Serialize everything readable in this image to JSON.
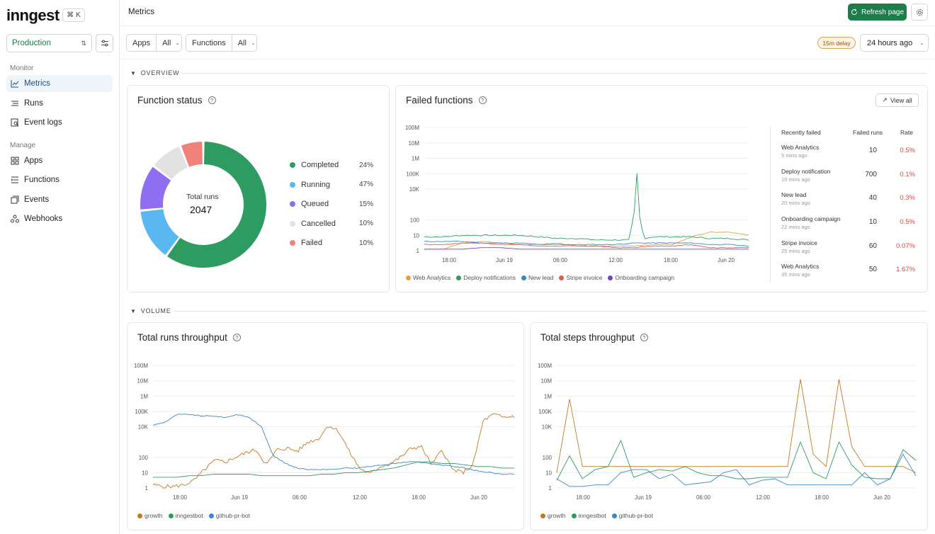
{
  "brand": {
    "logo": "inngest",
    "shortcut_symbol": "⌘",
    "shortcut_key": "K"
  },
  "environment": {
    "value": "Production"
  },
  "sidebar": {
    "monitor_label": "Monitor",
    "manage_label": "Manage",
    "items": [
      {
        "label": "Metrics",
        "icon": "chart-line-icon",
        "active": true
      },
      {
        "label": "Runs",
        "icon": "list-icon"
      },
      {
        "label": "Event logs",
        "icon": "search-doc-icon"
      },
      {
        "label": "Apps",
        "icon": "grid-icon"
      },
      {
        "label": "Functions",
        "icon": "function-list-icon"
      },
      {
        "label": "Events",
        "icon": "events-icon"
      },
      {
        "label": "Webhooks",
        "icon": "webhook-icon"
      }
    ]
  },
  "header": {
    "title": "Metrics",
    "refresh_label": "Refresh page"
  },
  "filters": {
    "apps_label": "Apps",
    "apps_value": "All",
    "functions_label": "Functions",
    "functions_value": "All",
    "delay_badge": "15m delay",
    "time_range": "24 hours ago"
  },
  "sections": {
    "overview": "OVERVIEW",
    "volume": "VOLUME"
  },
  "function_status": {
    "title": "Function status",
    "center_label": "Total runs",
    "center_value": "2047",
    "chart_data": {
      "type": "pie",
      "title": "Function status",
      "slices": [
        {
          "name": "Completed",
          "value": 24,
          "label": "24%",
          "color": "#2e9b61"
        },
        {
          "name": "Running",
          "value": 47,
          "label": "47%",
          "color": "#5ab7f0"
        },
        {
          "name": "Queued",
          "value": 15,
          "label": "15%",
          "color": "#8f6ef2"
        },
        {
          "name": "Cancelled",
          "value": 10,
          "label": "10%",
          "color": "#e2e2e2"
        },
        {
          "name": "Failed",
          "value": 10,
          "label": "10%",
          "color": "#f0827b"
        }
      ]
    }
  },
  "failed_functions": {
    "title": "Failed functions",
    "view_all": "View all",
    "table": {
      "headers": [
        "Recently failed",
        "Failed runs",
        "Rate"
      ],
      "rows": [
        {
          "name": "Web Analytics",
          "time": "5 mins ago",
          "count": "10",
          "rate": "0.5%"
        },
        {
          "name": "Deploy notification",
          "time": "10 mins ago",
          "count": "700",
          "rate": "0.1%"
        },
        {
          "name": "New lead",
          "time": "20 mins ago",
          "count": "40",
          "rate": "0.3%"
        },
        {
          "name": "Onboarding campaign",
          "time": "22 mins ago",
          "count": "10",
          "rate": "0.5%"
        },
        {
          "name": "Stripe invoice",
          "time": "25 mins ago",
          "count": "60",
          "rate": "0.07%"
        },
        {
          "name": "Web Analytics",
          "time": "35 mins ago",
          "count": "50",
          "rate": "1.67%"
        }
      ]
    },
    "chart_data": {
      "type": "line",
      "scale": "log",
      "y_ticks": [
        "100M",
        "10M",
        "1M",
        "100K",
        "10K",
        "100",
        "10",
        "1"
      ],
      "x_ticks": [
        "18:00",
        "Jun 19",
        "06:00",
        "12:00",
        "18:00",
        "Jun 20"
      ],
      "series": [
        {
          "name": "Web Analytics",
          "color": "#e2a43a"
        },
        {
          "name": "Deploy notifications",
          "color": "#2e9b61"
        },
        {
          "name": "New lead",
          "color": "#3b86c6"
        },
        {
          "name": "Stripe invoice",
          "color": "#e0584f"
        },
        {
          "name": "Onboarding campaign",
          "color": "#7b3fc4"
        }
      ]
    }
  },
  "runs_throughput": {
    "title": "Total runs throughput",
    "chart_data": {
      "type": "line",
      "scale": "log",
      "y_ticks": [
        "100M",
        "10M",
        "1M",
        "100K",
        "10K",
        "100",
        "10",
        "1"
      ],
      "x_ticks": [
        "18:00",
        "Jun 19",
        "06:00",
        "12:00",
        "18:00",
        "Jun 20"
      ],
      "series": [
        {
          "name": "growth",
          "color": "#c07a22"
        },
        {
          "name": "inngestbot",
          "color": "#2e9b61"
        },
        {
          "name": "github-pr-bot",
          "color": "#3b86c6"
        }
      ]
    }
  },
  "steps_throughput": {
    "title": "Total steps throughput",
    "chart_data": {
      "type": "line",
      "scale": "log",
      "y_ticks": [
        "100M",
        "10M",
        "1M",
        "100K",
        "10K",
        "100",
        "10",
        "1"
      ],
      "x_ticks": [
        "18:00",
        "Jun 19",
        "06:00",
        "12:00",
        "18:00",
        "Jun 20"
      ],
      "series": [
        {
          "name": "growth",
          "color": "#c07a22"
        },
        {
          "name": "inngestbot",
          "color": "#2e9b61"
        },
        {
          "name": "github-pr-bot",
          "color": "#3b86c6"
        }
      ]
    }
  }
}
